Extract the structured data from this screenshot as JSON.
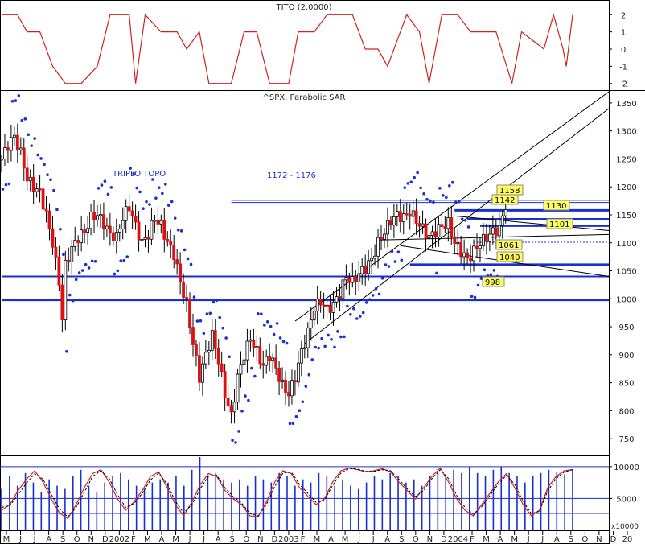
{
  "chart_data": [
    {
      "type": "line",
      "panel": "indicator",
      "title": "TITO (2.0000)",
      "yticks": [
        2,
        1,
        0,
        -1,
        -2
      ],
      "ylim": [
        -2.2,
        2.2
      ],
      "series": [
        {
          "color": "#d02020",
          "points": [
            [
              0,
              2
            ],
            [
              5,
              2
            ],
            [
              8,
              1
            ],
            [
              12,
              1
            ],
            [
              16,
              -1
            ],
            [
              20,
              -2
            ],
            [
              25,
              -2
            ],
            [
              30,
              -1
            ],
            [
              34,
              2
            ],
            [
              40,
              2
            ],
            [
              42,
              -2
            ],
            [
              45,
              2
            ],
            [
              50,
              1
            ],
            [
              55,
              1
            ],
            [
              58,
              0
            ],
            [
              62,
              1
            ],
            [
              65,
              -2
            ],
            [
              72,
              -2
            ],
            [
              76,
              1
            ],
            [
              80,
              1
            ],
            [
              84,
              -2
            ],
            [
              90,
              -2
            ],
            [
              93,
              1
            ],
            [
              98,
              1
            ],
            [
              102,
              2
            ],
            [
              110,
              2
            ],
            [
              114,
              0
            ],
            [
              118,
              0
            ],
            [
              121,
              -1
            ],
            [
              125,
              1
            ],
            [
              127,
              2
            ],
            [
              131,
              1
            ],
            [
              134,
              -2
            ],
            [
              138,
              2
            ],
            [
              143,
              2
            ],
            [
              147,
              1
            ],
            [
              155,
              1
            ],
            [
              160,
              -2
            ],
            [
              163,
              1
            ],
            [
              170,
              0
            ],
            [
              173,
              2
            ],
            [
              176,
              0
            ],
            [
              177,
              -1
            ],
            [
              179,
              2
            ]
          ]
        }
      ]
    },
    {
      "type": "candlestick",
      "panel": "price",
      "title": "^SPX, Parabolic SAR",
      "yticks": [
        1350,
        1300,
        1250,
        1200,
        1150,
        1100,
        1050,
        1000,
        950,
        900,
        850,
        800,
        750
      ],
      "ylim": [
        720,
        1370
      ],
      "annotations": {
        "triple_top_label": "TRIPLO TOPO",
        "resistance_zone_label": "1172 - 1176",
        "level_tags": [
          "1158",
          "1142",
          "1130",
          "1101",
          "1061",
          "1040",
          "998"
        ]
      },
      "horizontal_levels": [
        1176,
        1172,
        1158,
        1142,
        1130,
        1101,
        1061,
        1040,
        998
      ],
      "x_axis_labels": [
        "M",
        "J",
        "J",
        "A",
        "S",
        "O",
        "N",
        "D",
        "2002",
        "F",
        "M",
        "A",
        "M",
        "J",
        "J",
        "A",
        "S",
        "O",
        "N",
        "D",
        "2003",
        "F",
        "M",
        "A",
        "M",
        "J",
        "J",
        "A",
        "S",
        "O",
        "N",
        "D",
        "2004",
        "F",
        "M",
        "A",
        "M",
        "J",
        "J",
        "A",
        "S",
        "O",
        "N",
        "D",
        "20"
      ],
      "close_series": [
        [
          0,
          1250
        ],
        [
          2,
          1275
        ],
        [
          4,
          1290
        ],
        [
          6,
          1260
        ],
        [
          8,
          1215
        ],
        [
          10,
          1200
        ],
        [
          12,
          1190
        ],
        [
          14,
          1150
        ],
        [
          16,
          1100
        ],
        [
          18,
          1030
        ],
        [
          19,
          965
        ],
        [
          20,
          1060
        ],
        [
          22,
          1090
        ],
        [
          24,
          1110
        ],
        [
          26,
          1120
        ],
        [
          28,
          1145
        ],
        [
          30,
          1150
        ],
        [
          32,
          1135
        ],
        [
          34,
          1115
        ],
        [
          36,
          1110
        ],
        [
          38,
          1145
        ],
        [
          40,
          1165
        ],
        [
          42,
          1130
        ],
        [
          44,
          1100
        ],
        [
          46,
          1115
        ],
        [
          48,
          1145
        ],
        [
          50,
          1130
        ],
        [
          52,
          1100
        ],
        [
          54,
          1080
        ],
        [
          56,
          1030
        ],
        [
          58,
          990
        ],
        [
          60,
          920
        ],
        [
          62,
          860
        ],
        [
          64,
          900
        ],
        [
          66,
          935
        ],
        [
          68,
          890
        ],
        [
          70,
          830
        ],
        [
          72,
          790
        ],
        [
          74,
          860
        ],
        [
          76,
          900
        ],
        [
          78,
          930
        ],
        [
          80,
          905
        ],
        [
          82,
          880
        ],
        [
          84,
          900
        ],
        [
          86,
          875
        ],
        [
          88,
          845
        ],
        [
          90,
          830
        ],
        [
          92,
          860
        ],
        [
          94,
          905
        ],
        [
          96,
          940
        ],
        [
          98,
          985
        ],
        [
          100,
          995
        ],
        [
          102,
          980
        ],
        [
          104,
          990
        ],
        [
          106,
          1010
        ],
        [
          108,
          1040
        ],
        [
          110,
          1030
        ],
        [
          112,
          1045
        ],
        [
          114,
          1055
        ],
        [
          116,
          1070
        ],
        [
          118,
          1100
        ],
        [
          120,
          1120
        ],
        [
          122,
          1140
        ],
        [
          124,
          1150
        ],
        [
          126,
          1145
        ],
        [
          128,
          1155
        ],
        [
          130,
          1140
        ],
        [
          132,
          1125
        ],
        [
          134,
          1110
        ],
        [
          136,
          1120
        ],
        [
          138,
          1130
        ],
        [
          140,
          1135
        ],
        [
          142,
          1100
        ],
        [
          144,
          1085
        ],
        [
          146,
          1070
        ],
        [
          148,
          1085
        ],
        [
          150,
          1100
        ],
        [
          152,
          1110
        ],
        [
          154,
          1120
        ],
        [
          156,
          1125
        ],
        [
          158,
          1168
        ]
      ]
    },
    {
      "type": "bar",
      "panel": "volume",
      "yticks": [
        10000,
        5000
      ],
      "ylim": [
        0,
        11500
      ],
      "unit_label": "x10000",
      "volume": [
        6500,
        8500,
        7000,
        9000,
        7500,
        6000,
        8000,
        7000,
        6500,
        8500,
        9500,
        7000,
        6000,
        7500,
        8500,
        9000,
        8000,
        7000,
        6500,
        7500,
        8000,
        7500,
        8500,
        7000,
        9500,
        11500,
        8500,
        9000,
        8000,
        7500,
        8000,
        7000,
        8500,
        8000,
        7500,
        9000,
        8500,
        7000,
        8000,
        7500,
        9000,
        8500,
        7000,
        8000,
        7000,
        6500,
        7500,
        8500,
        8000,
        9000,
        8500,
        7500,
        8000,
        7000,
        8500,
        9000,
        8500,
        9500,
        9000,
        10000,
        9000,
        8500,
        9500,
        10000,
        9000,
        8500,
        7500,
        8500,
        9000,
        9500,
        9200,
        8800,
        9500
      ],
      "osc_solid": [
        20,
        30,
        55,
        75,
        90,
        70,
        40,
        15,
        5,
        30,
        60,
        85,
        92,
        70,
        40,
        20,
        35,
        55,
        80,
        88,
        60,
        30,
        10,
        35,
        65,
        85,
        80,
        55,
        40,
        30,
        10,
        8,
        35,
        70,
        90,
        85,
        60,
        45,
        30,
        40,
        70,
        90,
        95,
        92,
        88,
        90,
        94,
        88,
        70,
        55,
        40,
        60,
        80,
        95,
        70,
        40,
        20,
        10,
        30,
        50,
        70,
        85,
        60,
        30,
        10,
        20,
        60,
        80,
        90,
        92
      ],
      "osc_dashed": [
        25,
        28,
        48,
        68,
        85,
        75,
        48,
        22,
        8,
        25,
        52,
        80,
        90,
        76,
        48,
        25,
        32,
        50,
        74,
        86,
        66,
        36,
        15,
        30,
        58,
        80,
        82,
        60,
        44,
        33,
        14,
        10,
        30,
        62,
        86,
        88,
        66,
        50,
        34,
        38,
        64,
        86,
        94,
        93,
        89,
        89,
        92,
        90,
        75,
        58,
        44,
        55,
        76,
        92,
        76,
        46,
        25,
        13,
        26,
        46,
        66,
        82,
        66,
        36,
        14,
        18,
        54,
        76,
        88,
        92
      ]
    }
  ]
}
